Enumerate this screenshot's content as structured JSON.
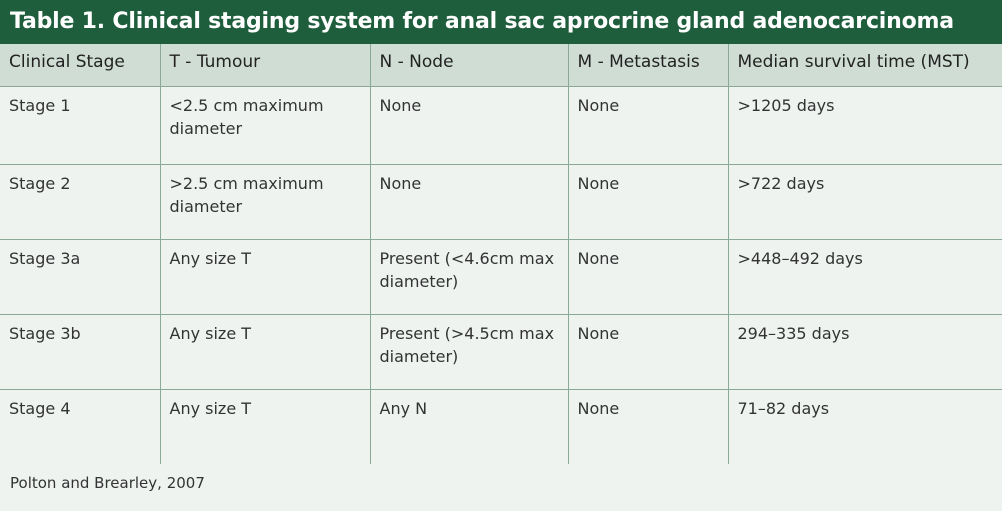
{
  "title": "Table 1. Clinical staging system for anal sac aprocrine gland adenocarcinoma",
  "colors": {
    "title_background": "#1f5e3d",
    "header_background": "#cfddd4",
    "body_background": "#eef3f0",
    "border": "#8aa896"
  },
  "table": {
    "headers": [
      "Clinical Stage",
      "T - Tumour",
      "N - Node",
      "M - Metastasis",
      "Median survival time (MST)"
    ],
    "rows": [
      [
        "Stage 1",
        "<2.5 cm maximum diameter",
        "None",
        "None",
        ">1205 days"
      ],
      [
        "Stage 2",
        ">2.5 cm maximum diameter",
        "None",
        "None",
        ">722 days"
      ],
      [
        "Stage 3a",
        "Any size T",
        "Present (<4.6cm max diameter)",
        "None",
        ">448–492 days"
      ],
      [
        "Stage 3b",
        "Any size T",
        "Present (>4.5cm max diameter)",
        "None",
        "294–335 days"
      ],
      [
        "Stage 4",
        "Any size T",
        "Any N",
        "None",
        "71–82 days"
      ]
    ]
  },
  "footnote": "Polton and Brearley, 2007"
}
